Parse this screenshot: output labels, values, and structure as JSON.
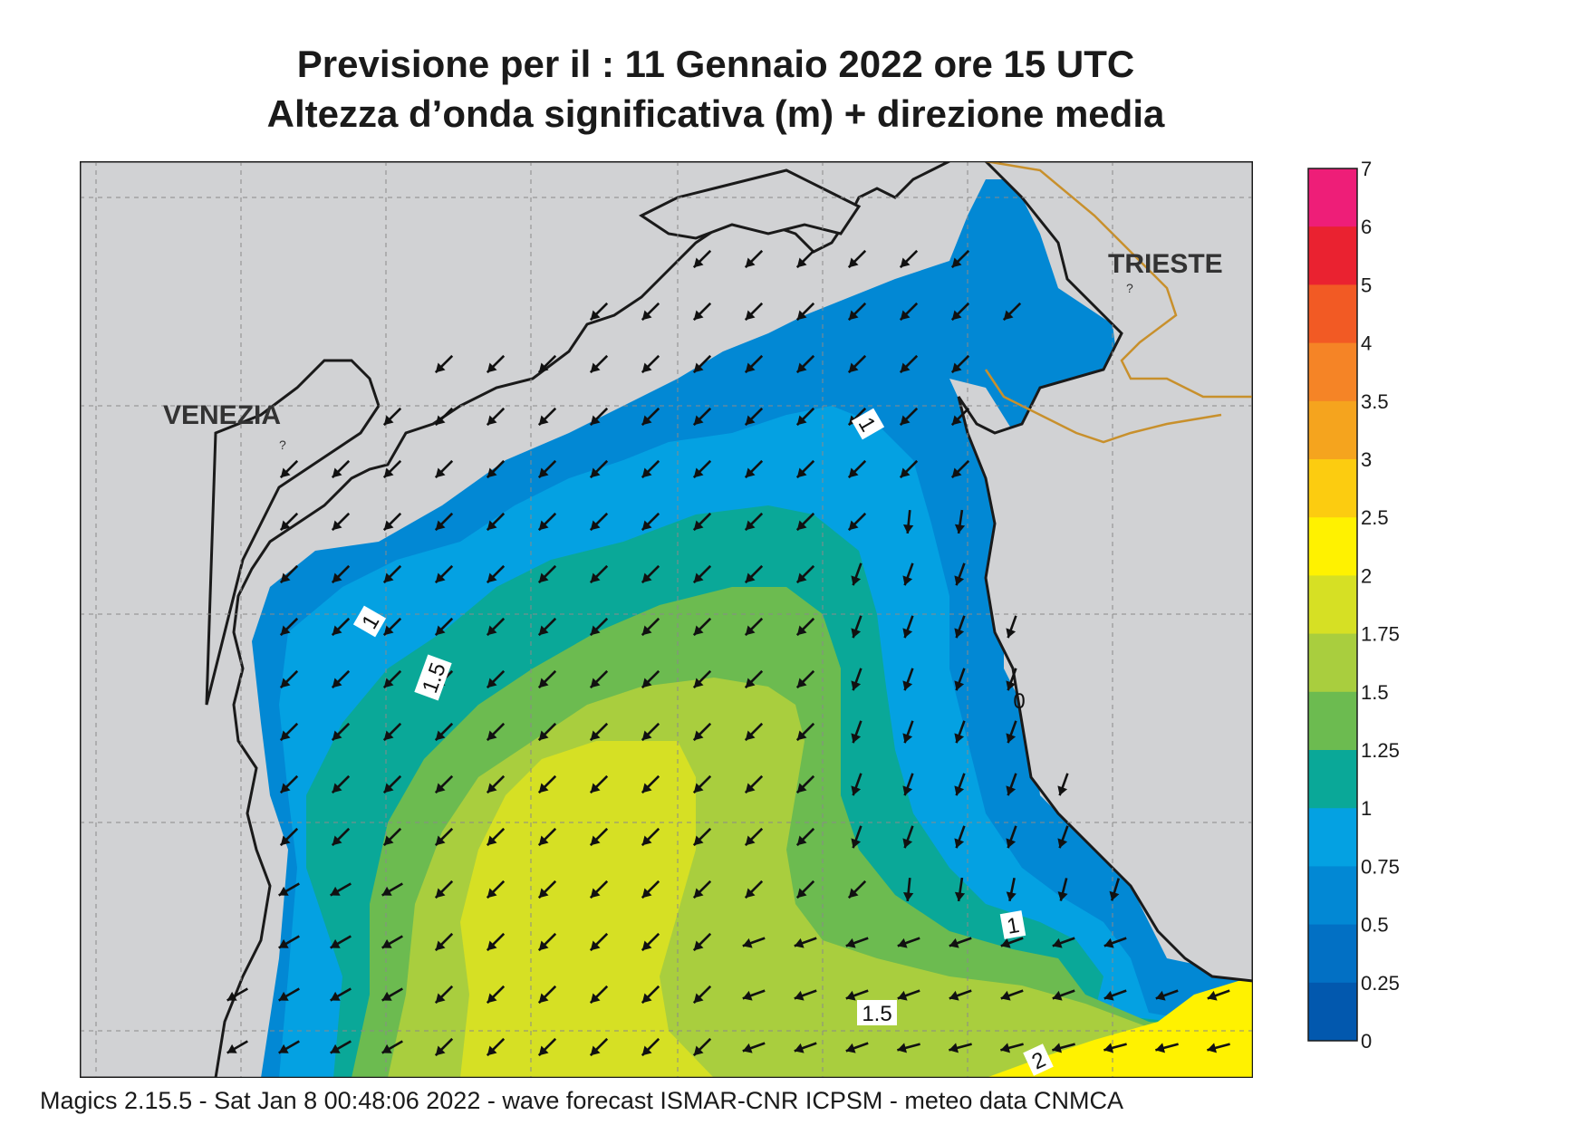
{
  "title": {
    "line1": "Previsione per il  :  11  Gennaio  2022   ore 15 UTC",
    "line2": "Altezza d’onda significativa (m) + direzione media"
  },
  "cities": [
    {
      "id": "venezia",
      "name": "VENEZIA"
    },
    {
      "id": "trieste",
      "name": "TRIESTE"
    }
  ],
  "contour_labels": [
    "1",
    "1.5",
    "1",
    "0",
    "1",
    "1.5",
    "2"
  ],
  "legend": {
    "labels": [
      "7",
      "6",
      "5",
      "4",
      "3.5",
      "3",
      "2.5",
      "2",
      "1.75",
      "1.5",
      "1.25",
      "1",
      "0.75",
      "0.5",
      "0.25",
      "0"
    ],
    "colors": [
      "#ee1e78",
      "#ea2230",
      "#f25a24",
      "#f58426",
      "#f5a41e",
      "#fccc10",
      "#fff200",
      "#d6e024",
      "#a9ce3e",
      "#6cbb50",
      "#0aa898",
      "#04a1e2",
      "#0288d4",
      "#0270c4",
      "#0258ae"
    ]
  },
  "map_colors": {
    "land": "#d1d2d4",
    "coast": "#1a1a1a",
    "border": "#c8902c"
  },
  "footer": "Magics 2.15.5 - Sat Jan  8 00:48:06 2022 - wave forecast  ISMAR-CNR  ICPSM - meteo data   CNMCA"
}
